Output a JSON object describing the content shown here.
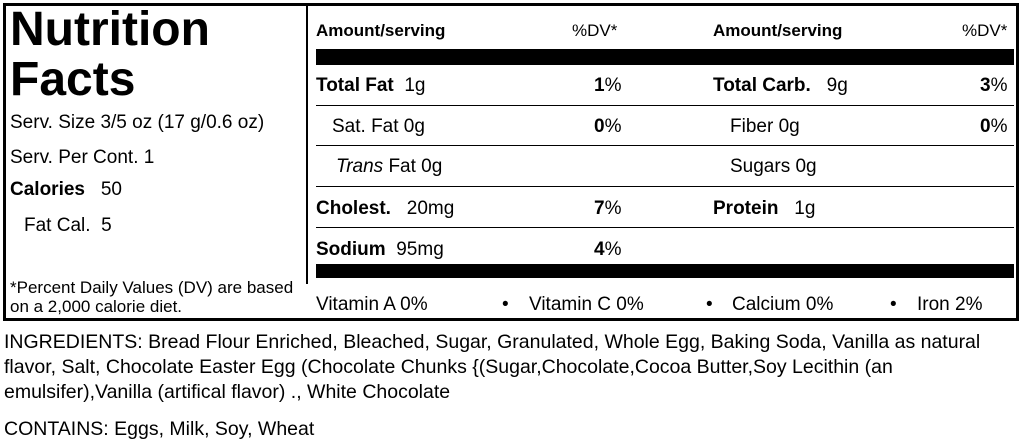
{
  "panel": {
    "title_line1": "Nutrition",
    "title_line2": "Facts",
    "serving_size": "Serv. Size 3/5 oz  (17 g/0.6 oz)",
    "servings_per": "Serv. Per Cont. 1",
    "calories_label": "Calories",
    "calories_value": "50",
    "fat_cal_label": "Fat Cal.",
    "fat_cal_value": "5",
    "footnote": "*Percent Daily Values (DV) are based on a 2,000 calorie diet."
  },
  "headers": {
    "amount": "Amount/serving",
    "dv": "%DV*"
  },
  "left_col": {
    "total_fat_label": "Total Fat",
    "total_fat_value": "1g",
    "total_fat_dv_num": "1",
    "sat_fat": "Sat. Fat 0g",
    "sat_fat_dv_num": "0",
    "trans_italic": "Trans",
    "trans_rest": "Fat 0g",
    "cholest_label": "Cholest.",
    "cholest_value": "20mg",
    "cholest_dv_num": "7",
    "sodium_label": "Sodium",
    "sodium_value": "95mg",
    "sodium_dv_num": "4"
  },
  "right_col": {
    "carb_label": "Total Carb.",
    "carb_value": "9g",
    "carb_dv_num": "3",
    "fiber": "Fiber 0g",
    "fiber_dv_num": "0",
    "sugars": "Sugars 0g",
    "protein_label": "Protein",
    "protein_value": "1g"
  },
  "pct_sign": "%",
  "vitamins": {
    "vit_a": "Vitamin A  0%",
    "vit_c": "Vitamin C  0%",
    "calcium": "Calcium  0%",
    "iron": "Iron  2%",
    "bullet": "•"
  },
  "ingredients": "INGREDIENTS: Bread Flour Enriched, Bleached, Sugar, Granulated, Whole Egg, Baking Soda, Vanilla as natural flavor, Salt, Chocolate Easter Egg (Chocolate Chunks {(Sugar,Chocolate,Cocoa Butter,Soy Lecithin (an emulsifer),Vanilla (artifical flavor) ., White Chocolate",
  "contains": "CONTAINS: Eggs, Milk, Soy, Wheat"
}
